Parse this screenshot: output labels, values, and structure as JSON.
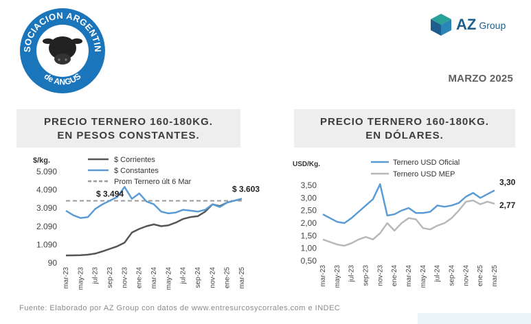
{
  "header": {
    "logo_text_top": "ASOCIACION ARGENTINA",
    "logo_text_bottom": "de ANGUS",
    "brand_name": "AZ",
    "brand_suffix": "Group",
    "date_label": "MARZO 2025"
  },
  "colors": {
    "corrientes": "#555555",
    "constantes": "#5b9bd5",
    "prom_line": "#9a9a9a",
    "usd_mep": "#b8b8b8",
    "brand_blue": "#1e5e8c",
    "logo_blue": "#1b75bb",
    "logo_teal": "#2aa198"
  },
  "footer": {
    "source": "Fuente: Elaborado por AZ Group con datos de www.entresurcosycorrales.com e INDEC"
  },
  "chart_data": [
    {
      "type": "line",
      "title_line1": "PRECIO TERNERO 160-180KG.",
      "title_line2": "EN PESOS CONSTANTES.",
      "ylabel": "$/kg.",
      "ylim": [
        90,
        5090
      ],
      "yticks": [
        "5.090",
        "4.090",
        "3.090",
        "2.090",
        "1.090",
        "90"
      ],
      "x_tick_labels": [
        "mar-23",
        "may-23",
        "jul-23",
        "sep-23",
        "nov-23",
        "ene-24",
        "mar-24",
        "may-24",
        "jul-24",
        "sep-24",
        "nov-24",
        "ene-25",
        "mar-25"
      ],
      "x": [
        "mar-23",
        "abr-23",
        "may-23",
        "jun-23",
        "jul-23",
        "ago-23",
        "sep-23",
        "oct-23",
        "nov-23",
        "dic-23",
        "ene-24",
        "feb-24",
        "mar-24",
        "abr-24",
        "may-24",
        "jun-24",
        "jul-24",
        "ago-24",
        "sep-24",
        "oct-24",
        "nov-24",
        "dic-24",
        "ene-25",
        "feb-25",
        "mar-25"
      ],
      "legend": [
        "$ Corrientes",
        "$ Constantes",
        "Prom Ternero últ 6 Mar"
      ],
      "series": [
        {
          "name": "$ Corrientes",
          "values": [
            500,
            505,
            515,
            540,
            600,
            720,
            860,
            1000,
            1200,
            1750,
            1950,
            2100,
            2200,
            2100,
            2150,
            2300,
            2500,
            2600,
            2650,
            2900,
            3300,
            3200,
            3400,
            3500,
            3603
          ]
        },
        {
          "name": "$ Constantes",
          "values": [
            2950,
            2700,
            2550,
            2600,
            3050,
            3300,
            3500,
            3700,
            4250,
            3600,
            3900,
            3450,
            3300,
            2900,
            2800,
            2850,
            3000,
            2950,
            2900,
            3000,
            3300,
            3150,
            3400,
            3500,
            3603
          ]
        }
      ],
      "reference_line": {
        "name": "Prom Ternero últ 6 Mar",
        "value": 3494
      },
      "annotations": [
        {
          "text": "$ 3.494",
          "value": 3494
        },
        {
          "text": "$ 3.603",
          "value": 3603
        }
      ]
    },
    {
      "type": "line",
      "title_line1": "PRECIO TERNERO 160-180KG.",
      "title_line2": "EN DÓLARES.",
      "ylabel": "USD/Kg.",
      "ylim": [
        0.5,
        3.5
      ],
      "yticks": [
        "3,50",
        "3,00",
        "2,50",
        "2,00",
        "1,50",
        "1,00",
        "0,50"
      ],
      "x_tick_labels": [
        "mar-23",
        "may-23",
        "jul-23",
        "sep-23",
        "nov-23",
        "ene-24",
        "mar-24",
        "may-24",
        "jul-24",
        "sep-24",
        "nov-24",
        "ene-25",
        "mar-25"
      ],
      "x": [
        "mar-23",
        "abr-23",
        "may-23",
        "jun-23",
        "jul-23",
        "ago-23",
        "sep-23",
        "oct-23",
        "nov-23",
        "dic-23",
        "ene-24",
        "feb-24",
        "mar-24",
        "abr-24",
        "may-24",
        "jun-24",
        "jul-24",
        "ago-24",
        "sep-24",
        "oct-24",
        "nov-24",
        "dic-24",
        "ene-25",
        "feb-25",
        "mar-25"
      ],
      "legend": [
        "Ternero USD Oficial",
        "Ternero USD MEP"
      ],
      "series": [
        {
          "name": "Ternero USD Oficial",
          "values": [
            2.35,
            2.2,
            2.05,
            2.0,
            2.2,
            2.45,
            2.7,
            2.95,
            3.55,
            2.3,
            2.35,
            2.5,
            2.6,
            2.4,
            2.4,
            2.45,
            2.7,
            2.65,
            2.7,
            2.8,
            3.05,
            3.2,
            3.0,
            3.15,
            3.3
          ]
        },
        {
          "name": "Ternero USD MEP",
          "values": [
            1.35,
            1.25,
            1.15,
            1.1,
            1.2,
            1.35,
            1.45,
            1.35,
            1.6,
            2.0,
            1.7,
            2.0,
            2.2,
            2.15,
            1.8,
            1.75,
            1.9,
            2.0,
            2.2,
            2.5,
            2.85,
            2.9,
            2.75,
            2.85,
            2.77
          ]
        }
      ],
      "annotations": [
        {
          "text": "3,30",
          "value": 3.3
        },
        {
          "text": "2,77",
          "value": 2.77
        }
      ]
    }
  ]
}
